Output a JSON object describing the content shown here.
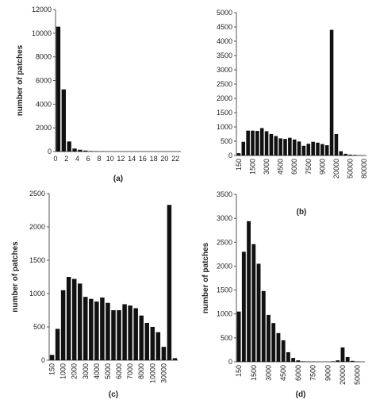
{
  "chart_data": [
    {
      "id": "a",
      "type": "bar",
      "caption": "(a)",
      "ylabel": "number of patches",
      "ylim": [
        0,
        12000
      ],
      "yticks": [
        0,
        2000,
        4000,
        6000,
        8000,
        10000,
        12000
      ],
      "xtick_labels": [
        "0",
        "2",
        "4",
        "6",
        "8",
        "10",
        "12",
        "14",
        "16",
        "18",
        "20",
        "22"
      ],
      "x_tick_step": 2,
      "values": [
        10550,
        5250,
        850,
        250,
        150,
        80,
        40,
        25,
        15,
        10,
        8,
        6,
        5,
        4,
        3,
        3,
        2,
        2,
        2,
        2,
        1,
        1,
        1
      ],
      "x_tilted": false
    },
    {
      "id": "b",
      "type": "bar",
      "caption": "(b)",
      "ylabel": "",
      "ylim": [
        0,
        5000
      ],
      "yticks": [
        0,
        500,
        1000,
        1500,
        2000,
        2500,
        3000,
        3500,
        4000,
        4500,
        5000
      ],
      "xtick_labels": [
        "150",
        "1500",
        "3000",
        "4500",
        "6000",
        "7500",
        "9000",
        "20000",
        "50000",
        "80000"
      ],
      "x_tick_step": 3,
      "values": [
        80,
        480,
        870,
        870,
        860,
        960,
        850,
        750,
        680,
        600,
        580,
        620,
        560,
        490,
        340,
        410,
        480,
        450,
        400,
        360,
        4400,
        750,
        150,
        60,
        30,
        20,
        10,
        5
      ],
      "x_tilted": true
    },
    {
      "id": "c",
      "type": "bar",
      "caption": "(c)",
      "ylabel": "number of patches",
      "ylim": [
        0,
        2500
      ],
      "yticks": [
        0,
        500,
        1000,
        1500,
        2000,
        2500
      ],
      "xtick_labels": [
        "150",
        "1000",
        "2000",
        "3000",
        "4000",
        "5000",
        "6000",
        "7000",
        "8000",
        "10000",
        "30000"
      ],
      "x_tick_step": 2,
      "values": [
        80,
        470,
        1050,
        1250,
        1220,
        1150,
        950,
        920,
        880,
        940,
        860,
        750,
        750,
        840,
        820,
        780,
        670,
        560,
        500,
        420,
        200,
        2330,
        30
      ],
      "x_tilted": true
    },
    {
      "id": "d",
      "type": "bar",
      "caption": "(d)",
      "ylabel": "number of patches",
      "ylim": [
        0,
        3500
      ],
      "yticks": [
        0,
        500,
        1000,
        1500,
        2000,
        2500,
        3000,
        3500
      ],
      "xtick_labels": [
        "150",
        "1500",
        "3000",
        "4500",
        "6000",
        "7500",
        "9000",
        "20000",
        "50000"
      ],
      "x_tick_step": 3,
      "values": [
        1050,
        2300,
        2940,
        2460,
        2050,
        1480,
        980,
        810,
        600,
        450,
        200,
        80,
        30,
        10,
        5,
        5,
        0,
        0,
        0,
        10,
        30,
        300,
        100,
        20,
        5,
        0
      ],
      "x_tilted": true
    }
  ]
}
